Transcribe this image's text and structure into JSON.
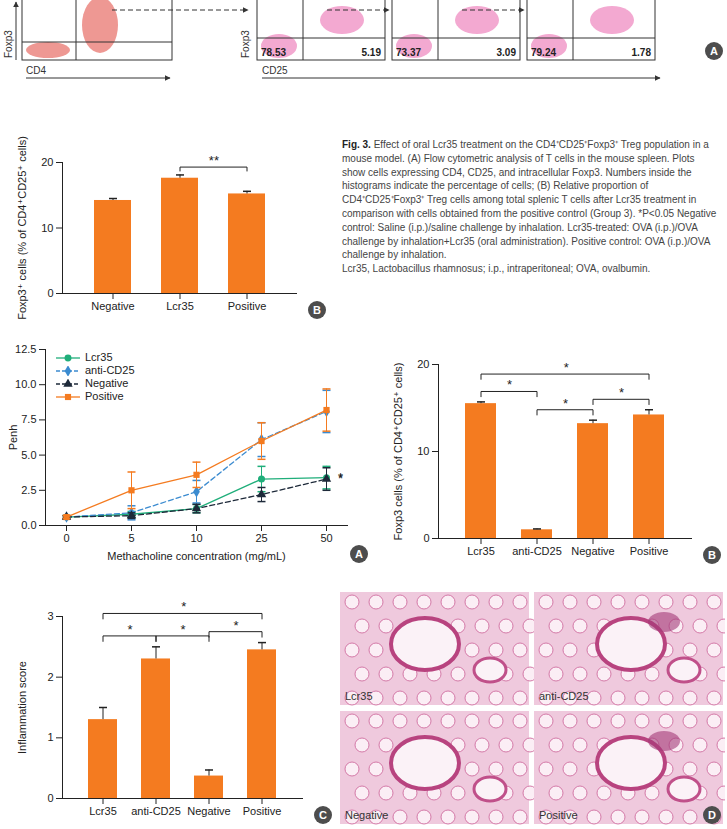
{
  "flow_cytometry": {
    "panel": "A",
    "left_plot": {
      "x_label": "CD4",
      "y_label": "Foxp3"
    },
    "right_plots": {
      "x_label": "CD25",
      "y_label": "Foxp3",
      "plots": [
        {
          "lower_left": 78.53,
          "lower_right": 5.19
        },
        {
          "lower_left": 73.37,
          "lower_right": 3.09
        },
        {
          "lower_left": 79.24,
          "lower_right": 1.78
        }
      ]
    }
  },
  "caption": {
    "title": "Fig. 3.",
    "paragraphs": [
      "Effect of oral Lcr35 treatment on the CD4⁺CD25⁺Foxp3⁺ Treg population in a mouse model. (A) Flow cytometric analysis of T cells in the mouse spleen. Plots show cells expressing CD4, CD25, and intracellular Foxp3. Numbers inside the histograms indicate the percentage of cells; (B) Relative proportion of CD4⁺CD25⁺Foxp3⁺ Treg cells among total splenic T cells after Lcr35 treatment in comparison with cells obtained from the positive control (Group 3). *P<0.05 Negative control: Saline (i.p.)/saline challenge by inhalation. Lcr35-treated: OVA (i.p.)/OVA challenge by inhalation+Lcr35 (oral administration). Positive control: OVA (i.p.)/OVA challenge by inhalation.",
      "Lcr35, Lactobacillus rhamnosus; i.p., intraperitoneal; OVA, ovalbumin."
    ]
  },
  "chart_data": [
    {
      "panel": "B",
      "type": "bar",
      "categories": [
        "Negative",
        "Lcr35",
        "Positive"
      ],
      "values": [
        14.2,
        17.6,
        15.2
      ],
      "errors": [
        0.3,
        0.5,
        0.4
      ],
      "color": "#f47b20",
      "ylabel": "Foxp3⁺ cells (% of CD4⁺CD25⁺ cells)",
      "ylim": [
        0,
        20
      ],
      "yticks": [
        0,
        10,
        20
      ],
      "annotations": [
        {
          "from": "Lcr35",
          "to": "Positive",
          "text": "**"
        }
      ]
    },
    {
      "panel": "A",
      "type": "line",
      "categories": [
        "0",
        "5",
        "10",
        "25",
        "50"
      ],
      "xlabel": "Methacholine concentration (mg/mL)",
      "ylabel": "Penh",
      "ylim": [
        0,
        12.5
      ],
      "yticks": [
        {
          "value": 0,
          "label": "0.0"
        },
        2.5,
        {
          "value": 5,
          "label": "5.0"
        },
        7.5,
        {
          "value": 10,
          "label": "10.0"
        },
        12.5
      ],
      "legend": "top-left",
      "series": [
        {
          "name": "Lcr35",
          "color": "#1fae7a",
          "marker": "circle",
          "line_style": "solid",
          "values": [
            0.6,
            0.8,
            1.2,
            3.3,
            3.4
          ],
          "errors": [
            0.1,
            0.2,
            0.3,
            0.9,
            0.8
          ]
        },
        {
          "name": "anti-CD25",
          "color": "#3b8bd0",
          "marker": "diamond",
          "line_style": "dashed",
          "values": [
            0.6,
            0.9,
            2.4,
            6.1,
            8.1
          ],
          "errors": [
            0.1,
            0.5,
            0.8,
            1.2,
            1.5
          ]
        },
        {
          "name": "Negative",
          "color": "#1e2a3a",
          "marker": "triangle",
          "line_style": "dashed",
          "values": [
            0.6,
            0.7,
            1.2,
            2.2,
            3.3
          ],
          "errors": [
            0.1,
            0.2,
            0.3,
            0.5,
            0.8
          ]
        },
        {
          "name": "Positive",
          "color": "#f47b20",
          "marker": "square",
          "line_style": "solid",
          "values": [
            0.6,
            2.5,
            3.6,
            6.0,
            8.2
          ],
          "errors": [
            0.1,
            1.3,
            0.9,
            1.3,
            1.5
          ]
        }
      ],
      "annotations": [
        {
          "series": "Lcr35",
          "text": "*"
        },
        {
          "series": "Negative",
          "text": "*"
        }
      ]
    },
    {
      "panel": "B",
      "type": "bar",
      "categories": [
        "Lcr35",
        "anti-CD25",
        "Negative",
        "Positive"
      ],
      "values": [
        15.5,
        1.0,
        13.2,
        14.2
      ],
      "errors": [
        0.2,
        0.1,
        0.4,
        0.6
      ],
      "color": "#f47b20",
      "ylabel": "Foxp3 cells (% of CD4⁺CD25⁺ cells)",
      "ylim": [
        0,
        20
      ],
      "yticks": [
        0,
        10,
        20
      ],
      "annotations": [
        {
          "from": "Lcr35",
          "to": "Positive",
          "text": "*"
        },
        {
          "from": "Lcr35",
          "to": "anti-CD25",
          "text": "*"
        },
        {
          "from": "anti-CD25",
          "to": "Negative",
          "text": "*"
        },
        {
          "from": "Negative",
          "to": "Positive",
          "text": "*"
        }
      ]
    },
    {
      "panel": "C",
      "type": "bar",
      "categories": [
        "Lcr35",
        "anti-CD25",
        "Negative",
        "Positive"
      ],
      "values": [
        1.3,
        2.3,
        0.37,
        2.45
      ],
      "errors": [
        0.2,
        0.2,
        0.1,
        0.12
      ],
      "color": "#f47b20",
      "ylabel": "Inflammation score",
      "ylim": [
        0,
        3
      ],
      "yticks": [
        0,
        1,
        2,
        3
      ],
      "annotations": [
        {
          "from": "Lcr35",
          "to": "Positive",
          "text": "*"
        },
        {
          "from": "Lcr35",
          "to": "anti-CD25",
          "text": "*"
        },
        {
          "from": "anti-CD25",
          "to": "Negative",
          "text": "*"
        },
        {
          "from": "Negative",
          "to": "Positive",
          "text": "*"
        }
      ]
    }
  ],
  "histology": {
    "panel": "D",
    "labels": [
      "Lcr35",
      "anti-CD25",
      "Negative",
      "Positive"
    ]
  }
}
